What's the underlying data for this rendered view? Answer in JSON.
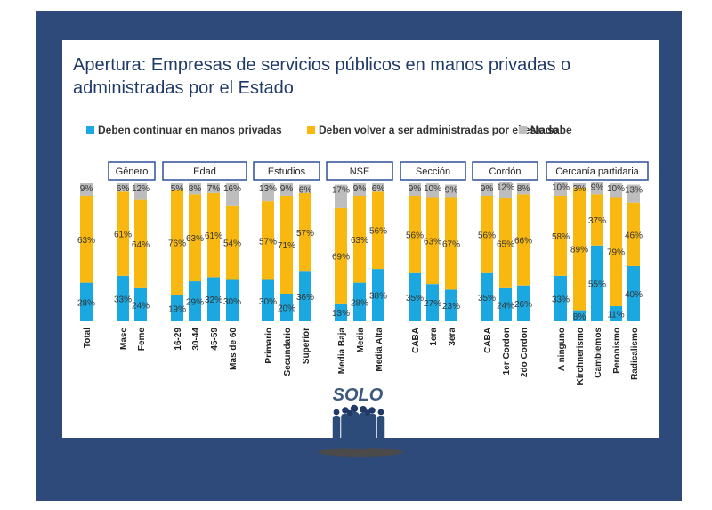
{
  "title": "Apertura: Empresas de servicios públicos en manos privadas o administradas por el Estado",
  "chart_data": {
    "type": "bar",
    "stacked": true,
    "categories": [
      "Total",
      "Masc",
      "Feme",
      "16-29",
      "30-44",
      "45-59",
      "Mas de 60",
      "Primario",
      "Secundario",
      "Superior",
      "Media Baja",
      "Media",
      "Media Alta",
      "CABA",
      "1era",
      "3era",
      "CABA",
      "1er Cordon",
      "2do Cordon",
      "A ninguno",
      "Kirchnerismo",
      "Cambiemos",
      "Peronismo",
      "Radicalismo"
    ],
    "groups": [
      {
        "label": "",
        "start": 0,
        "end": 0
      },
      {
        "label": "Género",
        "start": 1,
        "end": 2
      },
      {
        "label": "Edad",
        "start": 3,
        "end": 6
      },
      {
        "label": "Estudios",
        "start": 7,
        "end": 9
      },
      {
        "label": "NSE",
        "start": 10,
        "end": 12
      },
      {
        "label": "Sección",
        "start": 13,
        "end": 15
      },
      {
        "label": "Cordón",
        "start": 16,
        "end": 18
      },
      {
        "label": "Cercanía partidaria",
        "start": 19,
        "end": 23
      }
    ],
    "series": [
      {
        "name": "Deben continuar en manos privadas",
        "color": "#1ba8e0",
        "values": [
          28,
          33,
          24,
          19,
          29,
          32,
          30,
          30,
          20,
          36,
          13,
          28,
          38,
          35,
          27,
          23,
          35,
          24,
          26,
          33,
          8,
          55,
          11,
          40
        ],
        "labels": [
          "28%",
          "33%",
          "24%",
          "19%",
          "29%",
          "32%",
          "30%",
          "30%",
          "20%",
          "36%",
          "13%",
          "28%",
          "38%",
          "35%",
          "27%",
          "23%",
          "35%",
          "24%",
          "26%",
          "33%",
          "8%",
          "55%",
          "11%",
          "40%"
        ]
      },
      {
        "name": "Deben volver a ser administradas por el estado",
        "color": "#f8b810",
        "values": [
          63,
          61,
          64,
          76,
          63,
          61,
          54,
          57,
          71,
          57,
          69,
          63,
          56,
          56,
          63,
          67,
          56,
          65,
          66,
          58,
          89,
          37,
          79,
          46
        ],
        "labels": [
          "63%",
          "61%",
          "64%",
          "76%",
          "63%",
          "61%",
          "54%",
          "57%",
          "71%",
          "57%",
          "69%",
          "63%",
          "56%",
          "56%",
          "63%",
          "67%",
          "56%",
          "65%",
          "66%",
          "58%",
          "89%",
          "37%",
          "79%",
          "46%"
        ]
      },
      {
        "name": "No sabe",
        "color": "#bdbdbd",
        "values": [
          9,
          6,
          12,
          5,
          8,
          7,
          16,
          13,
          9,
          6,
          17,
          9,
          6,
          9,
          10,
          9,
          9,
          12,
          8,
          10,
          3,
          9,
          10,
          13
        ],
        "labels": [
          "9%",
          "6%",
          "12%",
          "5%",
          "8%",
          "7%",
          "16%",
          "13%",
          "9%",
          "6%",
          "17%",
          "9%",
          "6%",
          "9%",
          "10%",
          "9%",
          "9%",
          "12%",
          "8%",
          "10%",
          "3%",
          "9%",
          "10%",
          "13%"
        ]
      }
    ],
    "ylim": [
      0,
      100
    ],
    "legend_position": "top",
    "grid": false
  },
  "logo": {
    "text": "SOLO"
  }
}
